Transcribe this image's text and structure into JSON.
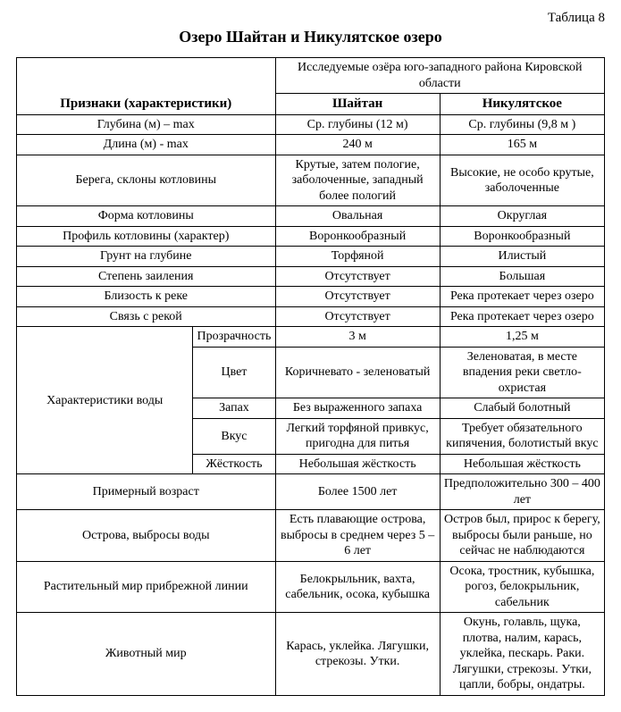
{
  "tableLabel": "Таблица 8",
  "title": "Озеро Шайтан и Никулятское озеро",
  "headers": {
    "attributes": "Признаки (характеристики)",
    "groupTop": "Исследуемые озёра юго-западного района Кировской области",
    "lake1": "Шайтан",
    "lake2": "Никулятское"
  },
  "rows": {
    "depth": {
      "label": "Глубина (м) – max",
      "v1": "Ср. глубины (12 м)",
      "v2": "Ср. глубины (9,8 м )"
    },
    "length": {
      "label": "Длина (м) - max",
      "v1": "240 м",
      "v2": "165 м"
    },
    "shores": {
      "label": "Берега, склоны котловины",
      "v1": "Крутые, затем пологие, заболоченные, западный более пологий",
      "v2": "Высокие, не особо крутые, заболоченные"
    },
    "basinShape": {
      "label": "Форма котловины",
      "v1": "Овальная",
      "v2": "Округлая"
    },
    "basinProfile": {
      "label": "Профиль котловины (характер)",
      "v1": "Воронкообразный",
      "v2": "Воронкообразный"
    },
    "soil": {
      "label": "Грунт на глубине",
      "v1": "Торфяной",
      "v2": "Илистый"
    },
    "silting": {
      "label": "Степень заиления",
      "v1": "Отсутствует",
      "v2": "Большая"
    },
    "riverProx": {
      "label": "Близость к реке",
      "v1": "Отсутствует",
      "v2": "Река протекает через озеро"
    },
    "riverConn": {
      "label": "Связь с рекой",
      "v1": "Отсутствует",
      "v2": "Река протекает через озеро"
    },
    "water": {
      "label": "Характеристики воды",
      "transparency": {
        "label": "Прозрачность",
        "v1": "3 м",
        "v2": "1,25 м"
      },
      "color": {
        "label": "Цвет",
        "v1": "Коричневато - зеленоватый",
        "v2": "Зеленоватая, в месте впадения реки светло-охристая"
      },
      "smell": {
        "label": "Запах",
        "v1": "Без выраженного запаха",
        "v2": "Слабый болотный"
      },
      "taste": {
        "label": "Вкус",
        "v1": "Легкий торфяной привкус, пригодна для питья",
        "v2": "Требует обязательного кипячения, болотистый вкус"
      },
      "hardness": {
        "label": "Жёсткость",
        "v1": "Небольшая жёсткость",
        "v2": "Небольшая жёсткость"
      }
    },
    "age": {
      "label": "Примерный возраст",
      "v1": "Более 1500 лет",
      "v2": "Предположительно 300 – 400 лет"
    },
    "islands": {
      "label": "Острова, выбросы воды",
      "v1": "Есть плавающие острова, выбросы в среднем через 5 – 6 лет",
      "v2": "Остров был, прирос к берегу, выбросы были раньше, но сейчас не наблюдаются"
    },
    "plants": {
      "label": "Растительный мир прибрежной линии",
      "v1": "Белокрыльник, вахта, сабельник, осока, кубышка",
      "v2": "Осока, тростник, кубышка, рогоз, белокрыльник, сабельник"
    },
    "fauna": {
      "label": "Животный мир",
      "v1": "Карась, уклейка. Лягушки, стрекозы. Утки.",
      "v2": "Окунь, голавль, щука, плотва, налим, карась, уклейка, пескарь. Раки. Лягушки, стрекозы. Утки, цапли, бобры, ондатры."
    }
  },
  "style": {
    "colors": {
      "background": "#ffffff",
      "text": "#000000",
      "border": "#000000"
    },
    "fonts": {
      "family": "Times New Roman",
      "titleSize": 18,
      "headerSize": 15,
      "cellSize": 14
    }
  }
}
